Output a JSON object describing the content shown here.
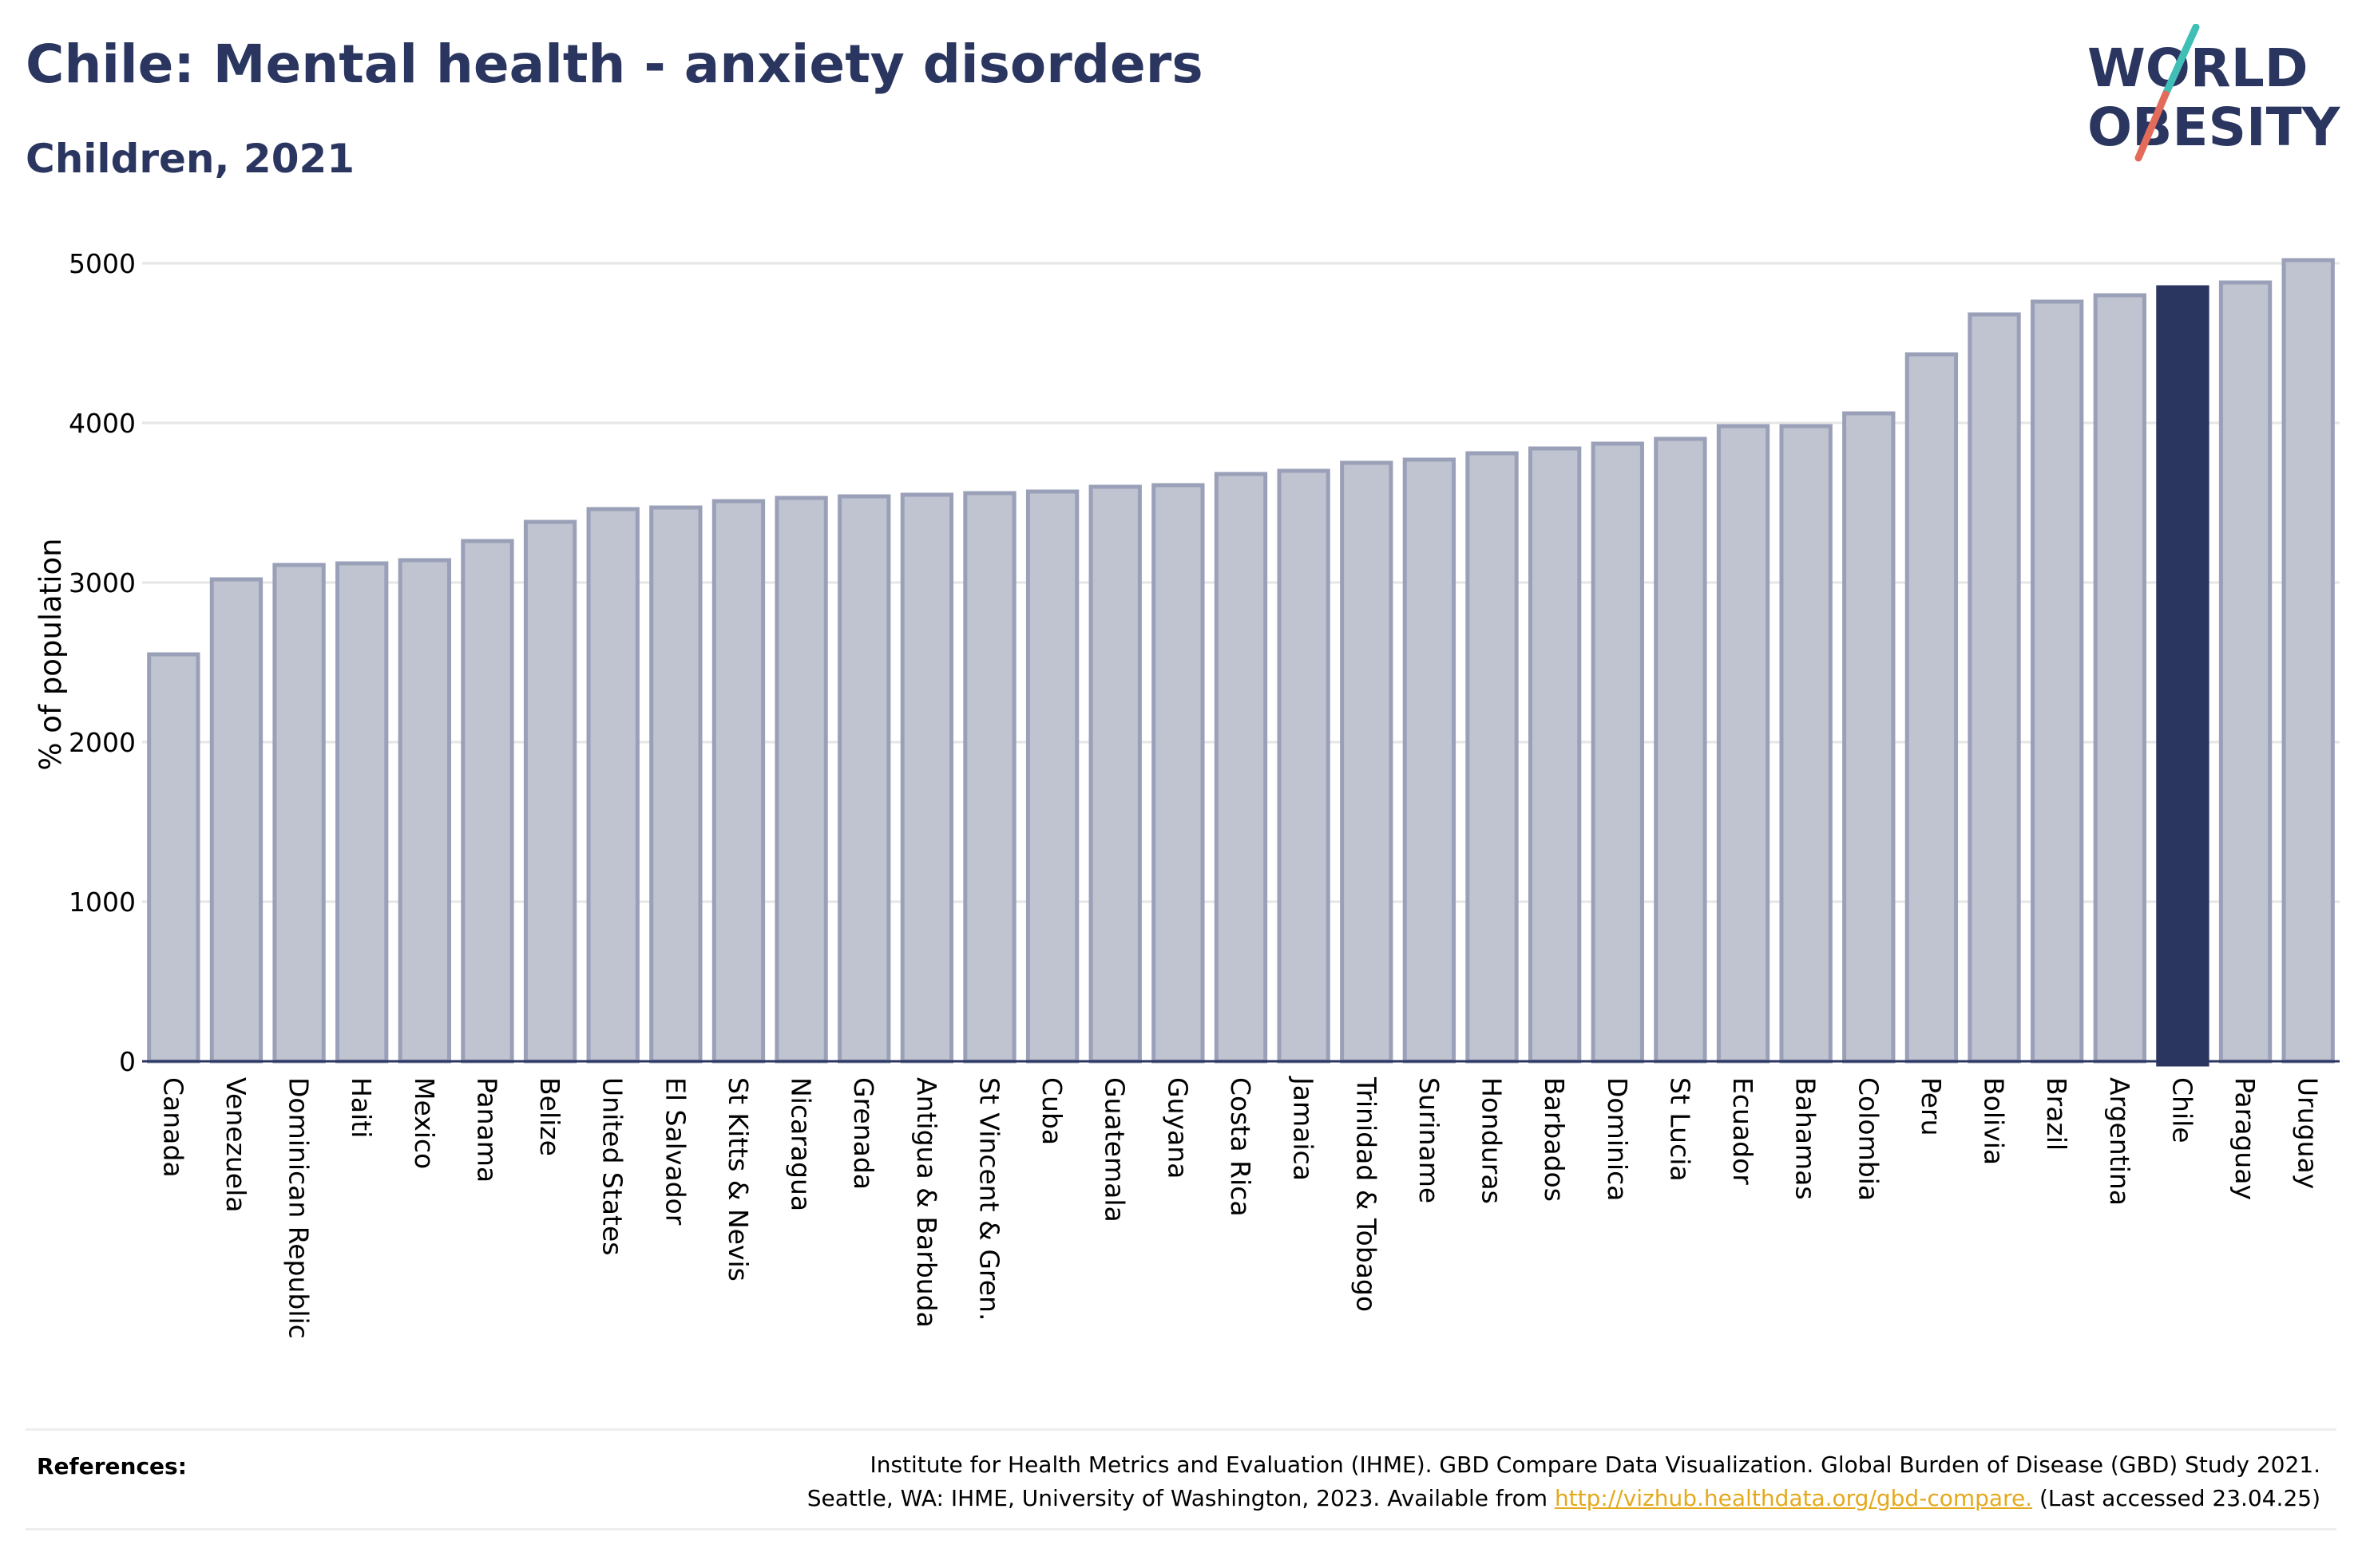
{
  "header": {
    "title": "Chile: Mental health - anxiety disorders",
    "subtitle": "Children, 2021"
  },
  "logo": {
    "line1": "WORLD",
    "line2": "OBESITY",
    "colors": {
      "text": "#2b3660",
      "slash_teal": "#3fbfb6",
      "slash_coral": "#e36b5a"
    }
  },
  "chart_data": {
    "type": "bar",
    "ylabel": "% of population",
    "ylim": [
      0,
      5100
    ],
    "yticks": [
      0,
      1000,
      2000,
      3000,
      4000,
      5000
    ],
    "grid": true,
    "highlight": "Chile",
    "colors": {
      "bar": "#c0c3d0",
      "bar_edge": "#9aa0b8",
      "highlight": "#2b3660"
    },
    "categories": [
      "Canada",
      "Venezuela",
      "Dominican Republic",
      "Haiti",
      "Mexico",
      "Panama",
      "Belize",
      "United States",
      "El Salvador",
      "St Kitts & Nevis",
      "Nicaragua",
      "Grenada",
      "Antigua & Barbuda",
      "St Vincent & Gren.",
      "Cuba",
      "Guatemala",
      "Guyana",
      "Costa Rica",
      "Jamaica",
      "Trinidad & Tobago",
      "Suriname",
      "Honduras",
      "Barbados",
      "Dominica",
      "St Lucia",
      "Ecuador",
      "Bahamas",
      "Colombia",
      "Peru",
      "Bolivia",
      "Brazil",
      "Argentina",
      "Chile",
      "Paraguay",
      "Uruguay"
    ],
    "values": [
      2550,
      3020,
      3110,
      3120,
      3140,
      3260,
      3380,
      3460,
      3470,
      3510,
      3530,
      3540,
      3550,
      3560,
      3570,
      3600,
      3610,
      3680,
      3700,
      3750,
      3770,
      3810,
      3840,
      3870,
      3900,
      3980,
      3980,
      4060,
      4430,
      4680,
      4760,
      4800,
      4850,
      4880,
      5020
    ]
  },
  "references": {
    "label": "References:",
    "line1": "Institute for Health Metrics and Evaluation (IHME). GBD Compare Data Visualization. Global Burden of Disease (GBD) Study 2021.",
    "line2_prefix": "Seattle, WA: IHME, University of Washington, 2023. Available from",
    "link": "http://vizhub.healthdata.org/gbd-compare.",
    "line2_suffix": "(Last accessed 23.04.25)"
  }
}
